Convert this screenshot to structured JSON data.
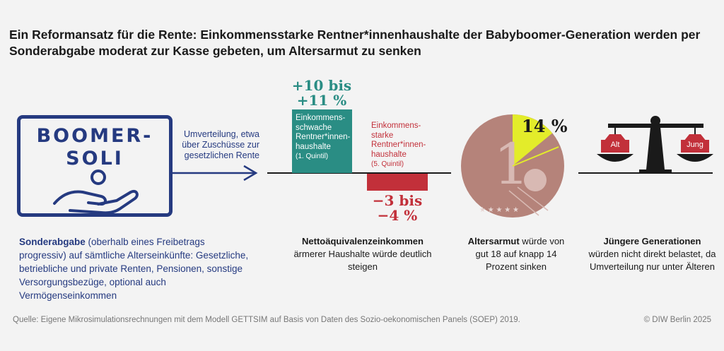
{
  "title": "Ein Reformansatz für die Rente: Einkommensstarke Rentner*innenhaushalte der Babyboomer-Generation werden per Sonderabgabe moderat zur Kasse gebeten, um Altersarmut zu senken",
  "logo": {
    "line1": "BOOMER-",
    "line2": "SOLI"
  },
  "arrow_label": "Umverteilung, etwa über Zuschüsse zur gesetzlichen Rente",
  "left_caption": {
    "bold": "Sonderabgabe",
    "rest": " (oberhalb eines Freibetrags progressiv) auf sämtliche Alterseinkünfte: Gesetzliche, betriebliche und private Renten, Pensionen, sonstige Versorgungsbezüge, optional auch Vermögenseinkommen"
  },
  "bars": {
    "positive": {
      "value_line1": "+10 bis",
      "value_line2": "+11 %",
      "label": "Einkommens-schwache Rentner*innen-haushalte",
      "quintile": "(1. Quintil)",
      "color": "#2a8d84"
    },
    "negative": {
      "value_line1": "−3 bis",
      "value_line2": "−4 %",
      "label": "Einkommens-starke Rentner*innen-haushalte",
      "quintile": "(5. Quintil)",
      "color": "#c2303a"
    }
  },
  "income_caption": {
    "bold": "Nettoäquivalenzeinkommen",
    "rest": "ärmerer Haushalte würde deutlich steigen"
  },
  "coin": {
    "share_label": "14 %",
    "share": 14,
    "digit": "1",
    "highlight_color": "#e3ec2a"
  },
  "poverty_caption": {
    "bold": "Altersarmut",
    "rest": " würde von gut 18 auf knapp 14 Prozent sinken"
  },
  "scale": {
    "left_label": "Alt",
    "right_label": "Jung"
  },
  "young_caption": {
    "bold": "Jüngere Generationen",
    "rest": "würden nicht direkt belastet, da Umverteilung nur unter Älteren"
  },
  "footer": {
    "source": "Quelle: Eigene Mikrosimulationsrechnungen mit dem Modell GETTSIM auf Basis von Daten des Sozio-oekonomischen Panels (SOEP) 2019.",
    "copyright": "© DIW Berlin 2025"
  }
}
